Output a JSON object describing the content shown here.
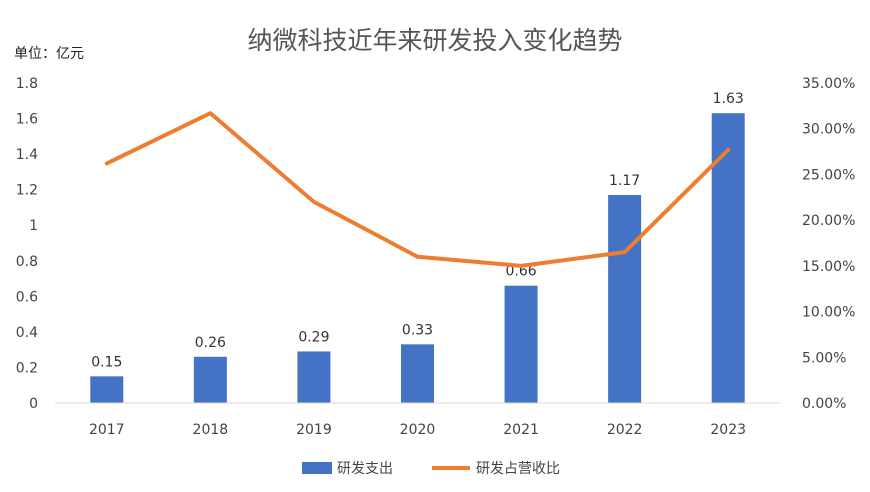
{
  "chart_data": {
    "type": "bar",
    "title": "纳微科技近年来研发投入变化趋势",
    "unit_label": "单位：亿元",
    "categories": [
      "2017",
      "2018",
      "2019",
      "2020",
      "2021",
      "2022",
      "2023"
    ],
    "series": [
      {
        "name": "研发支出",
        "type": "bar",
        "axis": "left",
        "color": "#4472C4",
        "values": [
          0.15,
          0.26,
          0.29,
          0.33,
          0.66,
          1.17,
          1.63
        ],
        "data_labels": [
          "0.15",
          "0.26",
          "0.29",
          "0.33",
          "0.66",
          "1.17",
          "1.63"
        ]
      },
      {
        "name": "研发占营收比",
        "type": "line",
        "axis": "right",
        "color": "#ED7D31",
        "values": [
          26.2,
          31.7,
          22.0,
          16.0,
          15.0,
          16.5,
          27.7
        ]
      }
    ],
    "y_left": {
      "ylim": [
        0,
        1.8
      ],
      "ticks": [
        "0",
        "0.2",
        "0.4",
        "0.6",
        "0.8",
        "1",
        "1.2",
        "1.4",
        "1.6",
        "1.8"
      ]
    },
    "y_right": {
      "ylim": [
        0,
        35
      ],
      "ticks": [
        "0.00%",
        "5.00%",
        "10.00%",
        "15.00%",
        "20.00%",
        "25.00%",
        "30.00%",
        "35.00%"
      ]
    },
    "grid": false,
    "legend_position": "bottom"
  }
}
